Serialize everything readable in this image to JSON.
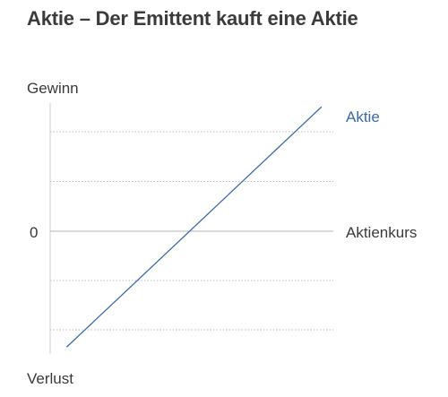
{
  "chart_data": {
    "type": "line",
    "title": "Aktie – Der Emittent kauft eine Aktie",
    "ylabel_top": "Gewinn",
    "ylabel_bottom": "Verlust",
    "xlabel": "Aktienkurs",
    "zero_label": "0",
    "ylim": [
      -2.3,
      2.6
    ],
    "xlim": [
      0,
      6
    ],
    "gridlines_y": [
      2,
      1,
      -1,
      -2
    ],
    "series": [
      {
        "name": "Aktie",
        "color": "#3b6aa6",
        "x": [
          0.35,
          5.75
        ],
        "y": [
          -2.35,
          2.5
        ]
      }
    ]
  }
}
